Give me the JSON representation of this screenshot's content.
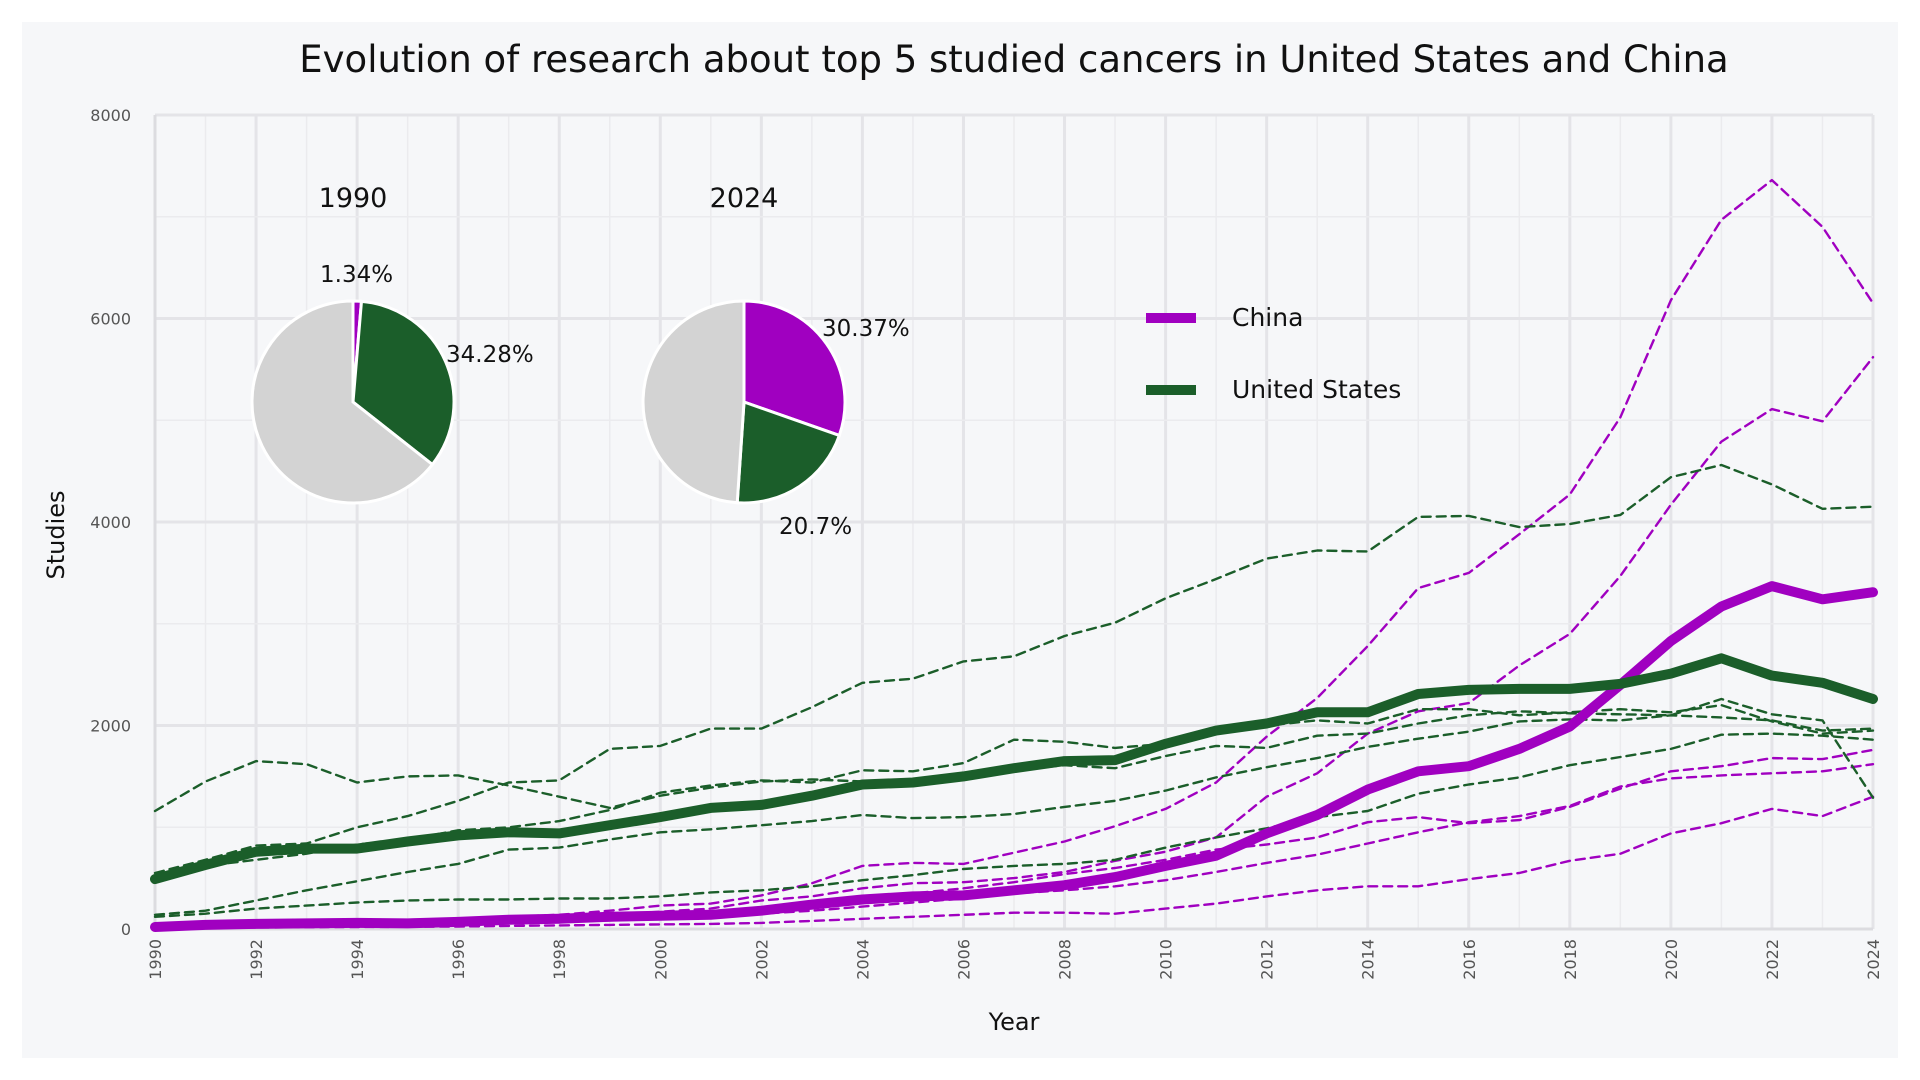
{
  "chart_data": {
    "type": "line",
    "title": "Evolution of research about top 5 studied cancers in United States and China",
    "xlabel": "Year",
    "ylabel": "Studies",
    "xlim": [
      1990,
      2024
    ],
    "ylim": [
      0,
      8000
    ],
    "x_ticks": [
      1990,
      1992,
      1994,
      1996,
      1998,
      2000,
      2002,
      2004,
      2006,
      2008,
      2010,
      2012,
      2014,
      2016,
      2018,
      2020,
      2022,
      2024
    ],
    "y_ticks": [
      0,
      2000,
      4000,
      6000,
      8000
    ],
    "grid": true,
    "legend_position": "upper-right-inside",
    "colors": {
      "China": "#a000c0",
      "United States": "#1b5e2a",
      "pie_other": "#d3d3d3"
    },
    "legend": [
      {
        "name": "China",
        "color": "#a000c0"
      },
      {
        "name": "United States",
        "color": "#1b5e2a"
      }
    ],
    "x": [
      1990,
      1991,
      1992,
      1993,
      1994,
      1995,
      1996,
      1997,
      1998,
      1999,
      2000,
      2001,
      2002,
      2003,
      2004,
      2005,
      2006,
      2007,
      2008,
      2009,
      2010,
      2011,
      2012,
      2013,
      2014,
      2015,
      2016,
      2017,
      2018,
      2019,
      2020,
      2021,
      2022,
      2023,
      2024
    ],
    "series": [
      {
        "name": "China",
        "style": "solid",
        "values": [
          20,
          40,
          50,
          55,
          60,
          55,
          70,
          90,
          100,
          120,
          130,
          140,
          180,
          240,
          290,
          320,
          330,
          380,
          430,
          510,
          620,
          720,
          940,
          1120,
          1370,
          1550,
          1600,
          1770,
          1990,
          2400,
          2830,
          3170,
          3370,
          3240,
          3310
        ]
      },
      {
        "name": "United States",
        "style": "solid",
        "values": [
          490,
          630,
          760,
          790,
          790,
          860,
          920,
          950,
          940,
          1020,
          1100,
          1190,
          1220,
          1310,
          1420,
          1440,
          1500,
          1580,
          1650,
          1660,
          1820,
          1950,
          2020,
          2130,
          2130,
          2310,
          2350,
          2360,
          2360,
          2410,
          2510,
          2660,
          2490,
          2420,
          2260
        ]
      },
      {
        "style": "dashed",
        "group": "China",
        "values": [
          40,
          50,
          60,
          70,
          80,
          90,
          100,
          120,
          140,
          180,
          230,
          250,
          330,
          450,
          620,
          650,
          640,
          750,
          860,
          1010,
          1180,
          1440,
          1890,
          2270,
          2780,
          3350,
          3500,
          3880,
          4270,
          5030,
          6180,
          6970,
          7360,
          6900,
          6150
        ]
      },
      {
        "style": "dashed",
        "group": "China",
        "values": [
          30,
          40,
          45,
          50,
          60,
          70,
          80,
          100,
          120,
          140,
          170,
          200,
          280,
          320,
          400,
          450,
          460,
          500,
          560,
          670,
          760,
          900,
          1300,
          1530,
          1920,
          2140,
          2220,
          2590,
          2900,
          3470,
          4170,
          4790,
          5110,
          4990,
          5620
        ]
      },
      {
        "style": "dashed",
        "group": "China",
        "values": [
          20,
          25,
          30,
          35,
          40,
          45,
          60,
          75,
          95,
          110,
          130,
          160,
          200,
          240,
          300,
          350,
          400,
          460,
          540,
          600,
          680,
          780,
          830,
          900,
          1050,
          1100,
          1040,
          1070,
          1200,
          1380,
          1550,
          1600,
          1680,
          1670,
          1760
        ]
      },
      {
        "style": "dashed",
        "group": "China",
        "values": [
          15,
          20,
          25,
          28,
          32,
          36,
          45,
          55,
          70,
          85,
          100,
          120,
          150,
          180,
          220,
          260,
          300,
          350,
          380,
          420,
          480,
          560,
          650,
          730,
          840,
          950,
          1050,
          1110,
          1210,
          1400,
          1480,
          1510,
          1530,
          1550,
          1620
        ]
      },
      {
        "style": "dashed",
        "group": "China",
        "values": [
          10,
          12,
          15,
          18,
          20,
          22,
          25,
          30,
          35,
          40,
          45,
          50,
          60,
          80,
          100,
          120,
          140,
          160,
          160,
          150,
          200,
          250,
          320,
          380,
          420,
          420,
          490,
          550,
          670,
          740,
          940,
          1040,
          1180,
          1110,
          1300
        ]
      },
      {
        "style": "dashed",
        "group": "United States",
        "values": [
          1160,
          1450,
          1650,
          1620,
          1440,
          1500,
          1510,
          1410,
          1300,
          1190,
          1310,
          1390,
          1450,
          1470,
          1450,
          1470,
          1510,
          1560,
          1610,
          1580,
          1700,
          1800,
          1780,
          1900,
          1920,
          2020,
          2100,
          2140,
          2120,
          2110,
          2100,
          2260,
          2110,
          2050,
          1290
        ]
      },
      {
        "style": "dashed",
        "group": "United States",
        "values": [
          510,
          620,
          680,
          740,
          830,
          880,
          970,
          1000,
          1060,
          1170,
          1340,
          1410,
          1460,
          1440,
          1560,
          1550,
          1630,
          1860,
          1840,
          1780,
          1820,
          1980,
          2000,
          2050,
          2020,
          2160,
          2160,
          2100,
          2130,
          2160,
          2130,
          2200,
          2040,
          1920,
          1950
        ]
      },
      {
        "style": "dashed",
        "group": "United States",
        "values": [
          550,
          680,
          820,
          840,
          1000,
          1110,
          1260,
          1440,
          1460,
          1770,
          1800,
          1970,
          1970,
          2180,
          2420,
          2460,
          2630,
          2680,
          2880,
          3010,
          3250,
          3440,
          3640,
          3720,
          3710,
          4050,
          4060,
          3950,
          3980,
          4070,
          4440,
          4560,
          4370,
          4130,
          4150
        ]
      },
      {
        "style": "dashed",
        "group": "United States",
        "values": [
          140,
          180,
          280,
          380,
          470,
          560,
          640,
          780,
          800,
          880,
          950,
          980,
          1020,
          1060,
          1120,
          1090,
          1100,
          1130,
          1200,
          1260,
          1360,
          1490,
          1590,
          1680,
          1790,
          1870,
          1940,
          2040,
          2060,
          2050,
          2100,
          2080,
          2050,
          1950,
          1970
        ]
      },
      {
        "style": "dashed",
        "group": "United States",
        "values": [
          120,
          150,
          200,
          230,
          260,
          280,
          290,
          290,
          300,
          300,
          320,
          360,
          380,
          420,
          480,
          530,
          590,
          620,
          640,
          680,
          800,
          900,
          990,
          1100,
          1160,
          1330,
          1420,
          1490,
          1610,
          1690,
          1770,
          1910,
          1920,
          1900,
          1860
        ]
      }
    ],
    "pies": [
      {
        "title": "1990",
        "slices": [
          {
            "label": "1.34%",
            "value": 1.34,
            "name": "China"
          },
          {
            "label": "34.28%",
            "value": 34.28,
            "name": "United States"
          },
          {
            "label": "",
            "value": 64.38,
            "name": "other"
          }
        ]
      },
      {
        "title": "2024",
        "slices": [
          {
            "label": "30.37%",
            "value": 30.37,
            "name": "China"
          },
          {
            "label": "20.7%",
            "value": 20.7,
            "name": "United States"
          },
          {
            "label": "",
            "value": 48.93,
            "name": "other"
          }
        ]
      }
    ]
  }
}
